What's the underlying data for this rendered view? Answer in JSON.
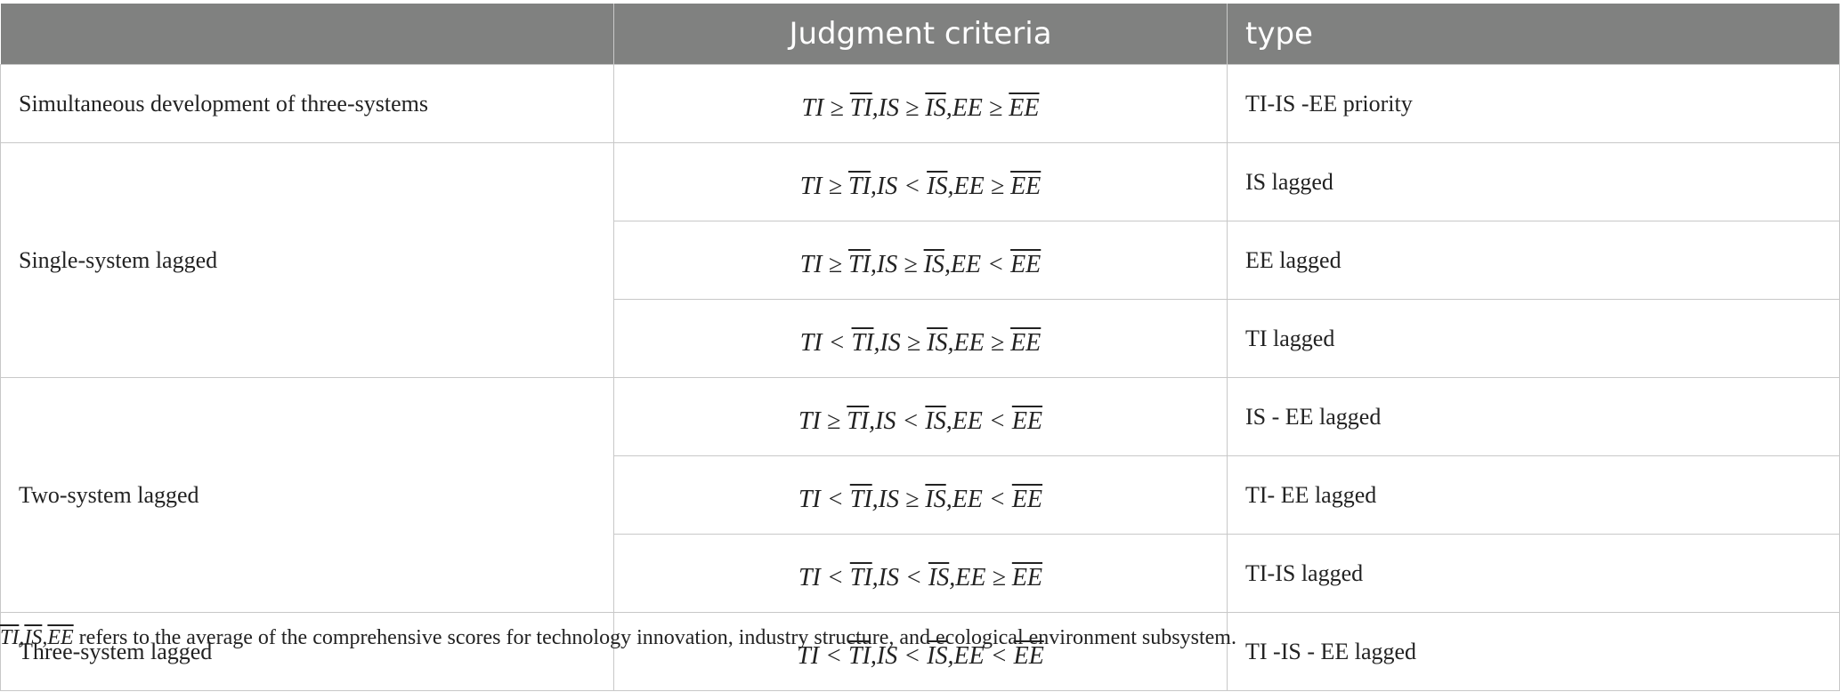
{
  "header": {
    "col1": "",
    "col2": "Judgment criteria",
    "col3": "type"
  },
  "rows": [
    {
      "category": "Simultaneous development of three-systems",
      "criteria": [
        "TI",
        " ≥ ",
        "TI",
        ",",
        "IS",
        " ≥ ",
        "IS",
        ",",
        "EE",
        " ≥ ",
        "EE"
      ],
      "type": "TI-IS -EE priority"
    },
    {
      "category": "Single-system lagged",
      "criteria": [
        "TI",
        " ≥ ",
        "TI",
        ",",
        "IS",
        " < ",
        "IS",
        ",",
        "EE",
        " ≥ ",
        "EE"
      ],
      "type": "IS lagged"
    },
    {
      "category": "",
      "criteria": [
        "TI",
        " ≥ ",
        "TI",
        ",",
        "IS",
        " ≥ ",
        "IS",
        ",",
        "EE",
        " < ",
        "EE"
      ],
      "type": "EE lagged"
    },
    {
      "category": "",
      "criteria": [
        "TI",
        " < ",
        "TI",
        ",",
        "IS",
        " ≥ ",
        "IS",
        ",",
        "EE",
        " ≥ ",
        "EE"
      ],
      "type": "TI lagged"
    },
    {
      "category": "Two-system lagged",
      "criteria": [
        "TI",
        " ≥ ",
        "TI",
        ",",
        "IS",
        " < ",
        "IS",
        ",",
        "EE",
        " < ",
        "EE"
      ],
      "type": "IS - EE lagged"
    },
    {
      "category": "",
      "criteria": [
        "TI",
        " < ",
        "TI",
        ",",
        "IS",
        " ≥ ",
        "IS",
        ",",
        "EE",
        " < ",
        "EE"
      ],
      "type": "TI- EE lagged"
    },
    {
      "category": "",
      "criteria": [
        "TI",
        " < ",
        "TI",
        ",",
        "IS",
        " < ",
        "IS",
        ",",
        "EE",
        " ≥ ",
        "EE"
      ],
      "type": "TI-IS lagged"
    },
    {
      "category": "Three-system lagged",
      "criteria": [
        "TI",
        " < ",
        "TI",
        ",",
        "IS",
        " < ",
        "IS",
        ",",
        "EE",
        " < ",
        "EE"
      ],
      "type": "TI -IS - EE lagged"
    }
  ],
  "footnote": {
    "math": [
      "TI",
      ",",
      "IS",
      ",",
      "EE"
    ],
    "text": " refers to the average of the comprehensive scores for technology innovation, industry structure, and ecological environment subsystem."
  }
}
